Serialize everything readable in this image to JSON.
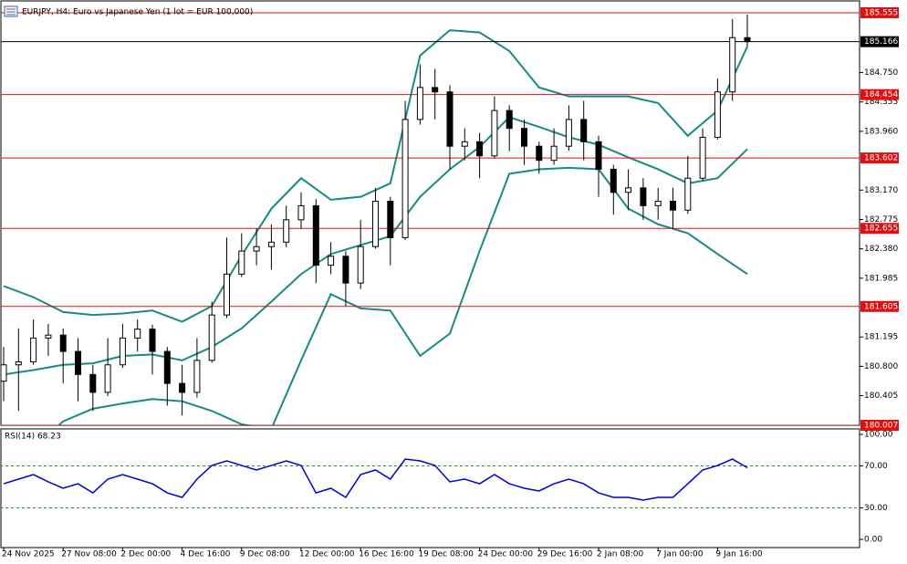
{
  "chart_data": [
    {
      "type": "candlestick",
      "title": "EURJPY, H4:  Euro vs Japanese Yen (1 lot = EUR 100,000)",
      "categories": [
        "24 Nov 2025",
        null,
        null,
        null,
        "27 Nov 08:00",
        null,
        null,
        null,
        "2 Dec 00:00",
        null,
        null,
        null,
        "4 Dec 16:00",
        null,
        null,
        null,
        "9 Dec 08:00",
        null,
        null,
        null,
        "12 Dec 00:00",
        null,
        null,
        null,
        "16 Dec 16:00",
        null,
        null,
        null,
        "19 Dec 08:00",
        null,
        null,
        null,
        "24 Dec 00:00",
        null,
        null,
        null,
        "29 Dec 16:00",
        null,
        null,
        null,
        "2 Jan 08:00",
        null,
        null,
        null,
        "7 Jan 00:00",
        null,
        null,
        null,
        "9 Jan 16:00",
        null,
        null
      ],
      "open": [
        180.6,
        180.82,
        180.86,
        181.18,
        181.22,
        181.0,
        180.69,
        180.45,
        180.82,
        181.18,
        181.3,
        181.0,
        180.57,
        180.45,
        180.88,
        181.49,
        182.04,
        182.35,
        182.41,
        182.47,
        182.77,
        182.96,
        182.16,
        182.28,
        181.92,
        182.41,
        183.02,
        182.53,
        184.12,
        184.55,
        184.49,
        183.76,
        183.82,
        183.63,
        184.24,
        184.0,
        183.76,
        183.57,
        183.76,
        184.12,
        183.82,
        183.45,
        183.14,
        183.2,
        182.96,
        183.02,
        182.9,
        183.33,
        183.88,
        184.49,
        185.22
      ],
      "high": [
        181.06,
        181.31,
        181.43,
        181.37,
        181.31,
        181.18,
        180.82,
        181.18,
        181.37,
        181.43,
        181.36,
        181.06,
        180.82,
        181.18,
        181.67,
        182.53,
        182.59,
        182.65,
        182.71,
        182.96,
        183.14,
        183.05,
        182.47,
        182.35,
        182.77,
        183.2,
        183.08,
        184.37,
        184.86,
        184.8,
        184.58,
        184.0,
        183.94,
        184.43,
        184.31,
        184.12,
        183.82,
        184.0,
        184.31,
        184.37,
        183.9,
        183.51,
        183.45,
        183.33,
        183.2,
        183.2,
        183.63,
        184.0,
        184.67,
        185.47,
        185.53
      ],
      "low": [
        180.33,
        180.2,
        180.82,
        180.94,
        180.57,
        180.33,
        180.2,
        180.4,
        180.78,
        181.0,
        180.69,
        180.27,
        180.14,
        180.38,
        180.85,
        181.45,
        182.0,
        182.16,
        182.1,
        182.4,
        182.65,
        181.92,
        182.04,
        181.61,
        181.84,
        182.38,
        182.16,
        182.5,
        184.05,
        184.12,
        183.45,
        183.57,
        183.33,
        183.6,
        183.69,
        183.51,
        183.39,
        183.51,
        183.7,
        183.57,
        183.08,
        182.84,
        182.9,
        182.77,
        182.77,
        182.65,
        182.85,
        183.3,
        183.85,
        184.37,
        185.1
      ],
      "close": [
        180.82,
        180.86,
        181.18,
        181.22,
        181.0,
        180.69,
        180.45,
        180.82,
        181.18,
        181.3,
        181.0,
        180.57,
        180.45,
        180.88,
        181.49,
        182.04,
        182.35,
        182.41,
        182.47,
        182.77,
        182.96,
        182.16,
        182.28,
        181.92,
        182.41,
        183.02,
        182.53,
        184.12,
        184.55,
        184.49,
        183.76,
        183.82,
        183.63,
        184.24,
        184.0,
        183.76,
        183.57,
        183.76,
        184.12,
        183.82,
        183.45,
        183.14,
        183.2,
        182.96,
        183.02,
        182.9,
        183.33,
        183.88,
        184.49,
        185.22,
        185.166
      ],
      "up_color": "#ffffff",
      "down_color": "#000000",
      "outline_color": "#000000",
      "bands": [
        {
          "color": "#168a84",
          "x": [
            0,
            2,
            4,
            6,
            8,
            10,
            12,
            14,
            16,
            18,
            20,
            22,
            24,
            26,
            28,
            30,
            32,
            34,
            36,
            38,
            40,
            42,
            44,
            46,
            48,
            50
          ],
          "values": [
            181.88,
            181.73,
            181.53,
            181.49,
            181.51,
            181.55,
            181.4,
            181.61,
            182.29,
            182.92,
            183.33,
            183.04,
            183.08,
            183.26,
            184.98,
            185.32,
            185.29,
            185.04,
            184.55,
            184.43,
            184.43,
            184.43,
            184.34,
            183.9,
            184.24,
            185.1
          ]
        },
        {
          "color": "#168a84",
          "x": [
            0,
            2,
            4,
            6,
            8,
            10,
            12,
            14,
            16,
            18,
            20,
            22,
            24,
            26,
            28,
            30,
            32,
            34,
            36,
            38,
            40,
            42,
            44,
            46,
            48,
            50
          ],
          "values": [
            180.69,
            180.75,
            180.82,
            180.84,
            180.94,
            180.96,
            180.88,
            181.06,
            181.31,
            181.67,
            182.04,
            182.31,
            182.43,
            182.55,
            183.08,
            183.45,
            183.75,
            184.15,
            184.02,
            183.88,
            183.78,
            183.61,
            183.45,
            183.26,
            183.33,
            183.72
          ]
        },
        {
          "color": "#168a84",
          "x": [
            0,
            2,
            4,
            6,
            8,
            10,
            12,
            14,
            16,
            18,
            20,
            22,
            24,
            26,
            28,
            30,
            32,
            34,
            36,
            38,
            40,
            42,
            44,
            46,
            48,
            50
          ],
          "values": [
            179.53,
            179.71,
            180.06,
            180.23,
            180.3,
            180.36,
            180.33,
            180.2,
            180.02,
            179.96,
            180.88,
            181.77,
            181.58,
            181.55,
            180.94,
            181.24,
            182.35,
            183.39,
            183.45,
            183.47,
            183.45,
            182.92,
            182.71,
            182.59,
            182.31,
            182.04
          ]
        }
      ],
      "ylim": [
        180.007,
        185.714
      ],
      "yticks": [
        {
          "value": 184.75,
          "label": "184.750"
        },
        184.355,
        {
          "value": 183.96,
          "label": "183.960"
        },
        {
          "value": 183.17,
          "label": "183.170"
        },
        182.775,
        {
          "value": 182.38,
          "label": "182.380"
        },
        181.985,
        181.195,
        {
          "value": 180.8,
          "label": "180.800"
        },
        180.405
      ],
      "levels": [
        185.555,
        184.454,
        183.602,
        182.655,
        181.605,
        180.007
      ],
      "level_color": "#e01010",
      "last_price": 185.166
    },
    {
      "type": "line",
      "title": "RSI(14) 68.23",
      "color": "#0000d0",
      "values": [
        53,
        57.4,
        61.7,
        54.8,
        48.7,
        53,
        44.3,
        57.4,
        61.7,
        57.4,
        53,
        44.3,
        40,
        57.4,
        70.4,
        74.8,
        70.4,
        66.1,
        70.4,
        74.8,
        70.4,
        44.3,
        48.7,
        40,
        61.7,
        66.1,
        57.4,
        76.5,
        74.8,
        70.4,
        54.8,
        57.4,
        53,
        61.7,
        53,
        48.7,
        46.1,
        53,
        57.4,
        53,
        44.3,
        40,
        40,
        37.4,
        40,
        40,
        53,
        66.1,
        70.4,
        76.5,
        68.23
      ],
      "ylim": [
        0,
        100
      ],
      "yticks": [
        {
          "value": 100,
          "label": "100.00"
        },
        {
          "value": 70,
          "label": "70.00"
        },
        {
          "value": 30,
          "label": "30.00"
        },
        {
          "value": 0,
          "label": "0.00"
        }
      ],
      "dashed_levels": [
        70,
        30
      ],
      "dashed_color": "#2a8a2a"
    }
  ]
}
